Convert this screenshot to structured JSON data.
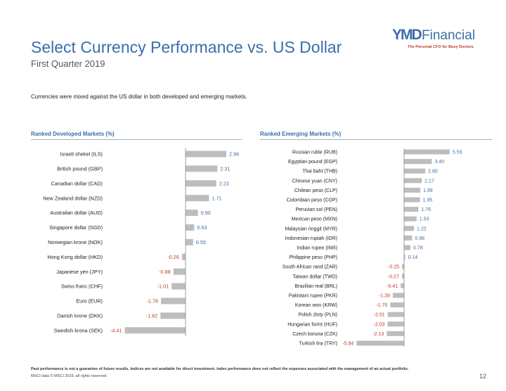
{
  "header": {
    "title": "Select Currency Performance vs. US Dollar",
    "subtitle": "First Quarter 2019",
    "intro": "Currencies were mixed against the US dollar in both developed and emerging markets."
  },
  "logo": {
    "brand_prefix": "YMD",
    "brand_name": "Financial",
    "tagline": "The Personal CFO for Busy Doctors"
  },
  "colors": {
    "accent": "#3a6fa8",
    "bar": "#bdbdbd",
    "positive": "#3a6fa8",
    "negative": "#c0392b"
  },
  "chart_data": [
    {
      "type": "bar",
      "orientation": "horizontal",
      "title": "Ranked Developed Markets (%)",
      "categories": [
        "Israeli shekel (ILS)",
        "British pound (GBP)",
        "Canadian dollar (CAD)",
        "New Zealand dollar (NZD)",
        "Australian dollar (AUD)",
        "Singapore dollar (SGD)",
        "Norwegian krone (NOK)",
        "Hong Kong dollar (HKD)",
        "Japanese yen (JPY)",
        "Swiss franc (CHF)",
        "Euro (EUR)",
        "Danish krone (DKK)",
        "Swedish krona (SEK)"
      ],
      "values": [
        2.96,
        2.31,
        2.23,
        1.71,
        0.9,
        0.63,
        0.55,
        -0.26,
        -0.88,
        -1.01,
        -1.78,
        -1.82,
        -4.41
      ],
      "xlim": [
        -4.41,
        2.96
      ]
    },
    {
      "type": "bar",
      "orientation": "horizontal",
      "title": "Ranked Emerging Markets (%)",
      "categories": [
        "Russian ruble (RUB)",
        "Egyptian pound (EGP)",
        "Thai baht (THB)",
        "Chinese yuan (CNY)",
        "Chilean peso (CLP)",
        "Colombian peso (COP)",
        "Peruvian sol (PEN)",
        "Mexican peso (MXN)",
        "Malaysian ringgit (MYR)",
        "Indonesian rupiah (IDR)",
        "Indian rupee (INR)",
        "Philippine peso (PHP)",
        "South African rand (ZAR)",
        "Taiwan dollar (TWD)",
        "Brazilian real (BRL)",
        "Pakistani rupee (PKR)",
        "Korean won (KRW)",
        "Polish zloty (PLN)",
        "Hungarian forint (HUF)",
        "Czech koruna (CZK)",
        "Turkish lira (TRY)"
      ],
      "values": [
        5.59,
        3.4,
        2.6,
        2.17,
        1.99,
        1.95,
        1.76,
        1.53,
        1.22,
        0.98,
        0.78,
        0.14,
        -0.25,
        -0.27,
        -0.41,
        -1.39,
        -1.7,
        -2.01,
        -2.03,
        -2.13,
        -5.84
      ],
      "xlim": [
        -5.84,
        5.59
      ]
    }
  ],
  "footer": {
    "disclaimer": "Past performance is not a guarantee of future results. Indices are not available for direct investment. Index performance does not reflect the expenses associated with the management of an actual portfolio.",
    "source": "MSCI data © MSCI 2019, all rights reserved.",
    "page_number": "12"
  }
}
